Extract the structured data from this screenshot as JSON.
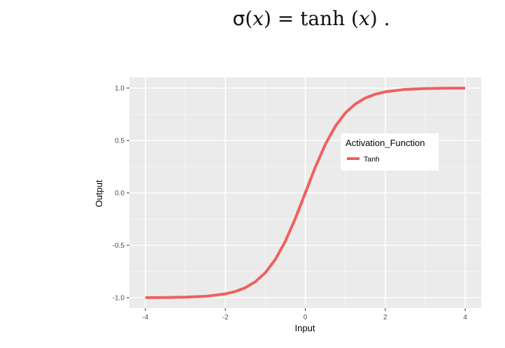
{
  "formula": {
    "sigma": "σ",
    "open_paren": "(",
    "x": "x",
    "close_paren_eq": ") = tanh (",
    "x2": "x",
    "close": ") ."
  },
  "chart_data": {
    "type": "line",
    "function": "tanh",
    "xlabel": "Input",
    "ylabel": "Output",
    "xlim": [
      -4.4,
      4.4
    ],
    "ylim": [
      -1.1,
      1.1
    ],
    "x_ticks": [
      -4,
      -2,
      0,
      2,
      4
    ],
    "x_tick_labels": [
      "-4",
      "-2",
      "0",
      "2",
      "4"
    ],
    "y_ticks": [
      -1.0,
      -0.5,
      0.0,
      0.5,
      1.0
    ],
    "y_tick_labels": [
      "-1.0",
      "-0.5",
      "0.0",
      "0.5",
      "1.0"
    ],
    "grid": true,
    "legend": {
      "title": "Activation_Function",
      "position": "upper-right inside"
    },
    "series": [
      {
        "name": "Tanh",
        "color": "#f0605d",
        "x": [
          -4,
          -3.5,
          -3,
          -2.5,
          -2,
          -1.75,
          -1.5,
          -1.25,
          -1,
          -0.75,
          -0.5,
          -0.25,
          0,
          0.25,
          0.5,
          0.75,
          1,
          1.25,
          1.5,
          1.75,
          2,
          2.5,
          3,
          3.5,
          4
        ],
        "y": [
          -0.999,
          -0.998,
          -0.995,
          -0.987,
          -0.964,
          -0.941,
          -0.905,
          -0.848,
          -0.762,
          -0.635,
          -0.462,
          -0.245,
          0.0,
          0.245,
          0.462,
          0.635,
          0.762,
          0.848,
          0.905,
          0.941,
          0.964,
          0.987,
          0.995,
          0.998,
          0.999
        ]
      }
    ]
  }
}
